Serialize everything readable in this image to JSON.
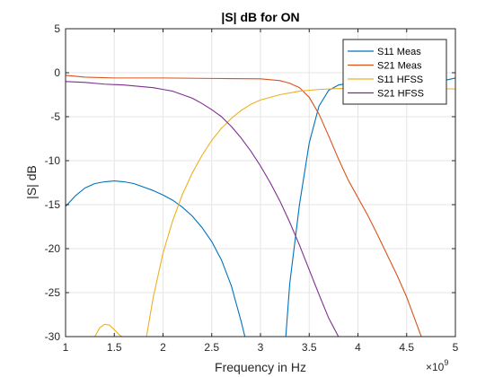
{
  "chart_data": {
    "type": "line",
    "title": "|S| dB for ON",
    "xlabel": "Frequency in Hz",
    "ylabel": "|S| dB",
    "x_multiplier": {
      "base": "×10",
      "exponent": "9"
    },
    "xlim": [
      1,
      5
    ],
    "ylim": [
      -30,
      5
    ],
    "xticks": [
      1,
      1.5,
      2,
      2.5,
      3,
      3.5,
      4,
      4.5,
      5
    ],
    "xtick_labels": [
      "1",
      "1.5",
      "2",
      "2.5",
      "3",
      "3.5",
      "4",
      "4.5",
      "5"
    ],
    "yticks": [
      5,
      0,
      -5,
      -10,
      -15,
      -20,
      -25,
      -30
    ],
    "ytick_labels": [
      "5",
      "0",
      "-5",
      "-10",
      "-15",
      "-20",
      "-25",
      "-30"
    ],
    "grid": true,
    "legend_position": "top-right",
    "series": [
      {
        "name": "S11 Meas",
        "color": "#0072BD",
        "x": [
          1.0,
          1.1,
          1.2,
          1.3,
          1.4,
          1.5,
          1.6,
          1.7,
          1.8,
          1.9,
          2.0,
          2.1,
          2.2,
          2.3,
          2.4,
          2.5,
          2.6,
          2.7,
          2.8,
          2.84,
          null,
          3.26,
          3.3,
          3.4,
          3.5,
          3.6,
          3.7,
          3.8,
          3.9,
          4.0,
          4.1,
          4.2,
          4.3,
          4.4,
          4.5,
          4.6,
          4.7,
          4.8,
          4.9,
          5.0
        ],
        "y": [
          -15.2,
          -14.0,
          -13.1,
          -12.6,
          -12.4,
          -12.3,
          -12.4,
          -12.6,
          -13.0,
          -13.4,
          -13.9,
          -14.5,
          -15.3,
          -16.3,
          -17.6,
          -19.2,
          -21.3,
          -24.2,
          -28.2,
          -30.0,
          null,
          -30.0,
          -24.0,
          -15.0,
          -8.0,
          -3.8,
          -2.0,
          -1.4,
          -1.2,
          -1.1,
          -1.0,
          -0.95,
          -0.9,
          -0.9,
          -0.85,
          -0.85,
          -0.85,
          -0.9,
          -0.85,
          -0.6
        ]
      },
      {
        "name": "S21 Meas",
        "color": "#D95319",
        "x": [
          1.0,
          1.2,
          1.5,
          2.0,
          2.5,
          3.0,
          3.2,
          3.3,
          3.4,
          3.5,
          3.6,
          3.7,
          3.8,
          3.9,
          4.0,
          4.1,
          4.2,
          4.3,
          4.4,
          4.5,
          4.6,
          4.65
        ],
        "y": [
          -0.3,
          -0.5,
          -0.6,
          -0.6,
          -0.65,
          -0.7,
          -0.9,
          -1.2,
          -1.7,
          -2.8,
          -4.7,
          -7.2,
          -9.8,
          -12.2,
          -14.2,
          -16.2,
          -18.4,
          -20.7,
          -23.0,
          -25.5,
          -28.5,
          -30.0
        ]
      },
      {
        "name": "S11 HFSS",
        "color": "#EDB120",
        "x": [
          1.3,
          1.35,
          1.4,
          1.45,
          1.5,
          1.55,
          1.58,
          null,
          1.83,
          1.9,
          2.0,
          2.1,
          2.2,
          2.3,
          2.4,
          2.5,
          2.6,
          2.7,
          2.8,
          2.9,
          3.0,
          3.2,
          3.4,
          3.6,
          3.8,
          4.0,
          4.5,
          5.0
        ],
        "y": [
          -30.0,
          -29.0,
          -28.6,
          -28.7,
          -29.2,
          -29.8,
          -30.0,
          null,
          -30.0,
          -25.5,
          -20.5,
          -16.8,
          -13.8,
          -11.4,
          -9.4,
          -7.7,
          -6.3,
          -5.2,
          -4.3,
          -3.6,
          -3.1,
          -2.5,
          -2.1,
          -1.9,
          -1.8,
          -1.75,
          -1.75,
          -1.85
        ]
      },
      {
        "name": "S21 HFSS",
        "color": "#7E2F8E",
        "x": [
          1.0,
          1.2,
          1.4,
          1.6,
          1.8,
          1.9,
          2.0,
          2.1,
          2.2,
          2.3,
          2.4,
          2.5,
          2.6,
          2.7,
          2.8,
          2.9,
          3.0,
          3.1,
          3.2,
          3.3,
          3.4,
          3.5,
          3.6,
          3.7,
          3.8
        ],
        "y": [
          -1.0,
          -1.1,
          -1.3,
          -1.4,
          -1.6,
          -1.7,
          -1.9,
          -2.1,
          -2.5,
          -2.9,
          -3.5,
          -4.2,
          -5.0,
          -6.1,
          -7.4,
          -8.9,
          -10.6,
          -12.5,
          -14.6,
          -17.0,
          -19.6,
          -22.4,
          -25.2,
          -27.9,
          -30.0
        ]
      }
    ]
  }
}
